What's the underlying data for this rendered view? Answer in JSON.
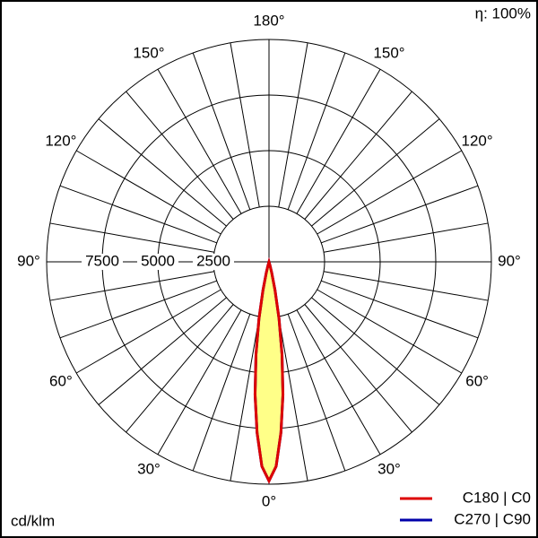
{
  "chart_data": {
    "type": "polar",
    "note": "η: 100%",
    "unit": "cd/klm",
    "x": [
      -20,
      -16,
      -14,
      -12,
      -10,
      -8,
      -6,
      -4,
      -2,
      0,
      2,
      4,
      6,
      8,
      10,
      12,
      14,
      16,
      20
    ],
    "series": [
      {
        "name": "C270 | C90",
        "color": "#0000aa",
        "values": [
          0,
          150,
          500,
          1300,
          2600,
          4200,
          6000,
          7700,
          9200,
          9850,
          9200,
          7700,
          6000,
          4200,
          2600,
          1300,
          500,
          150,
          0
        ]
      },
      {
        "name": "C180 | C0",
        "color": "#dd0000",
        "values": [
          0,
          150,
          500,
          1300,
          2600,
          4200,
          6000,
          7700,
          9200,
          9850,
          9200,
          7700,
          6000,
          4200,
          2600,
          1300,
          500,
          150,
          0
        ]
      }
    ],
    "rlim": [
      0,
      10000
    ],
    "rticks": [
      2500,
      5000,
      7500
    ],
    "angle_ticks": [
      {
        "value": 0,
        "label": "0°"
      },
      {
        "value": 30,
        "label": "30°"
      },
      {
        "value": 60,
        "label": "60°"
      },
      {
        "value": 90,
        "label": "90°"
      },
      {
        "value": 120,
        "label": "120°"
      },
      {
        "value": 150,
        "label": "150°"
      },
      {
        "value": 180,
        "label": "180°"
      }
    ]
  }
}
